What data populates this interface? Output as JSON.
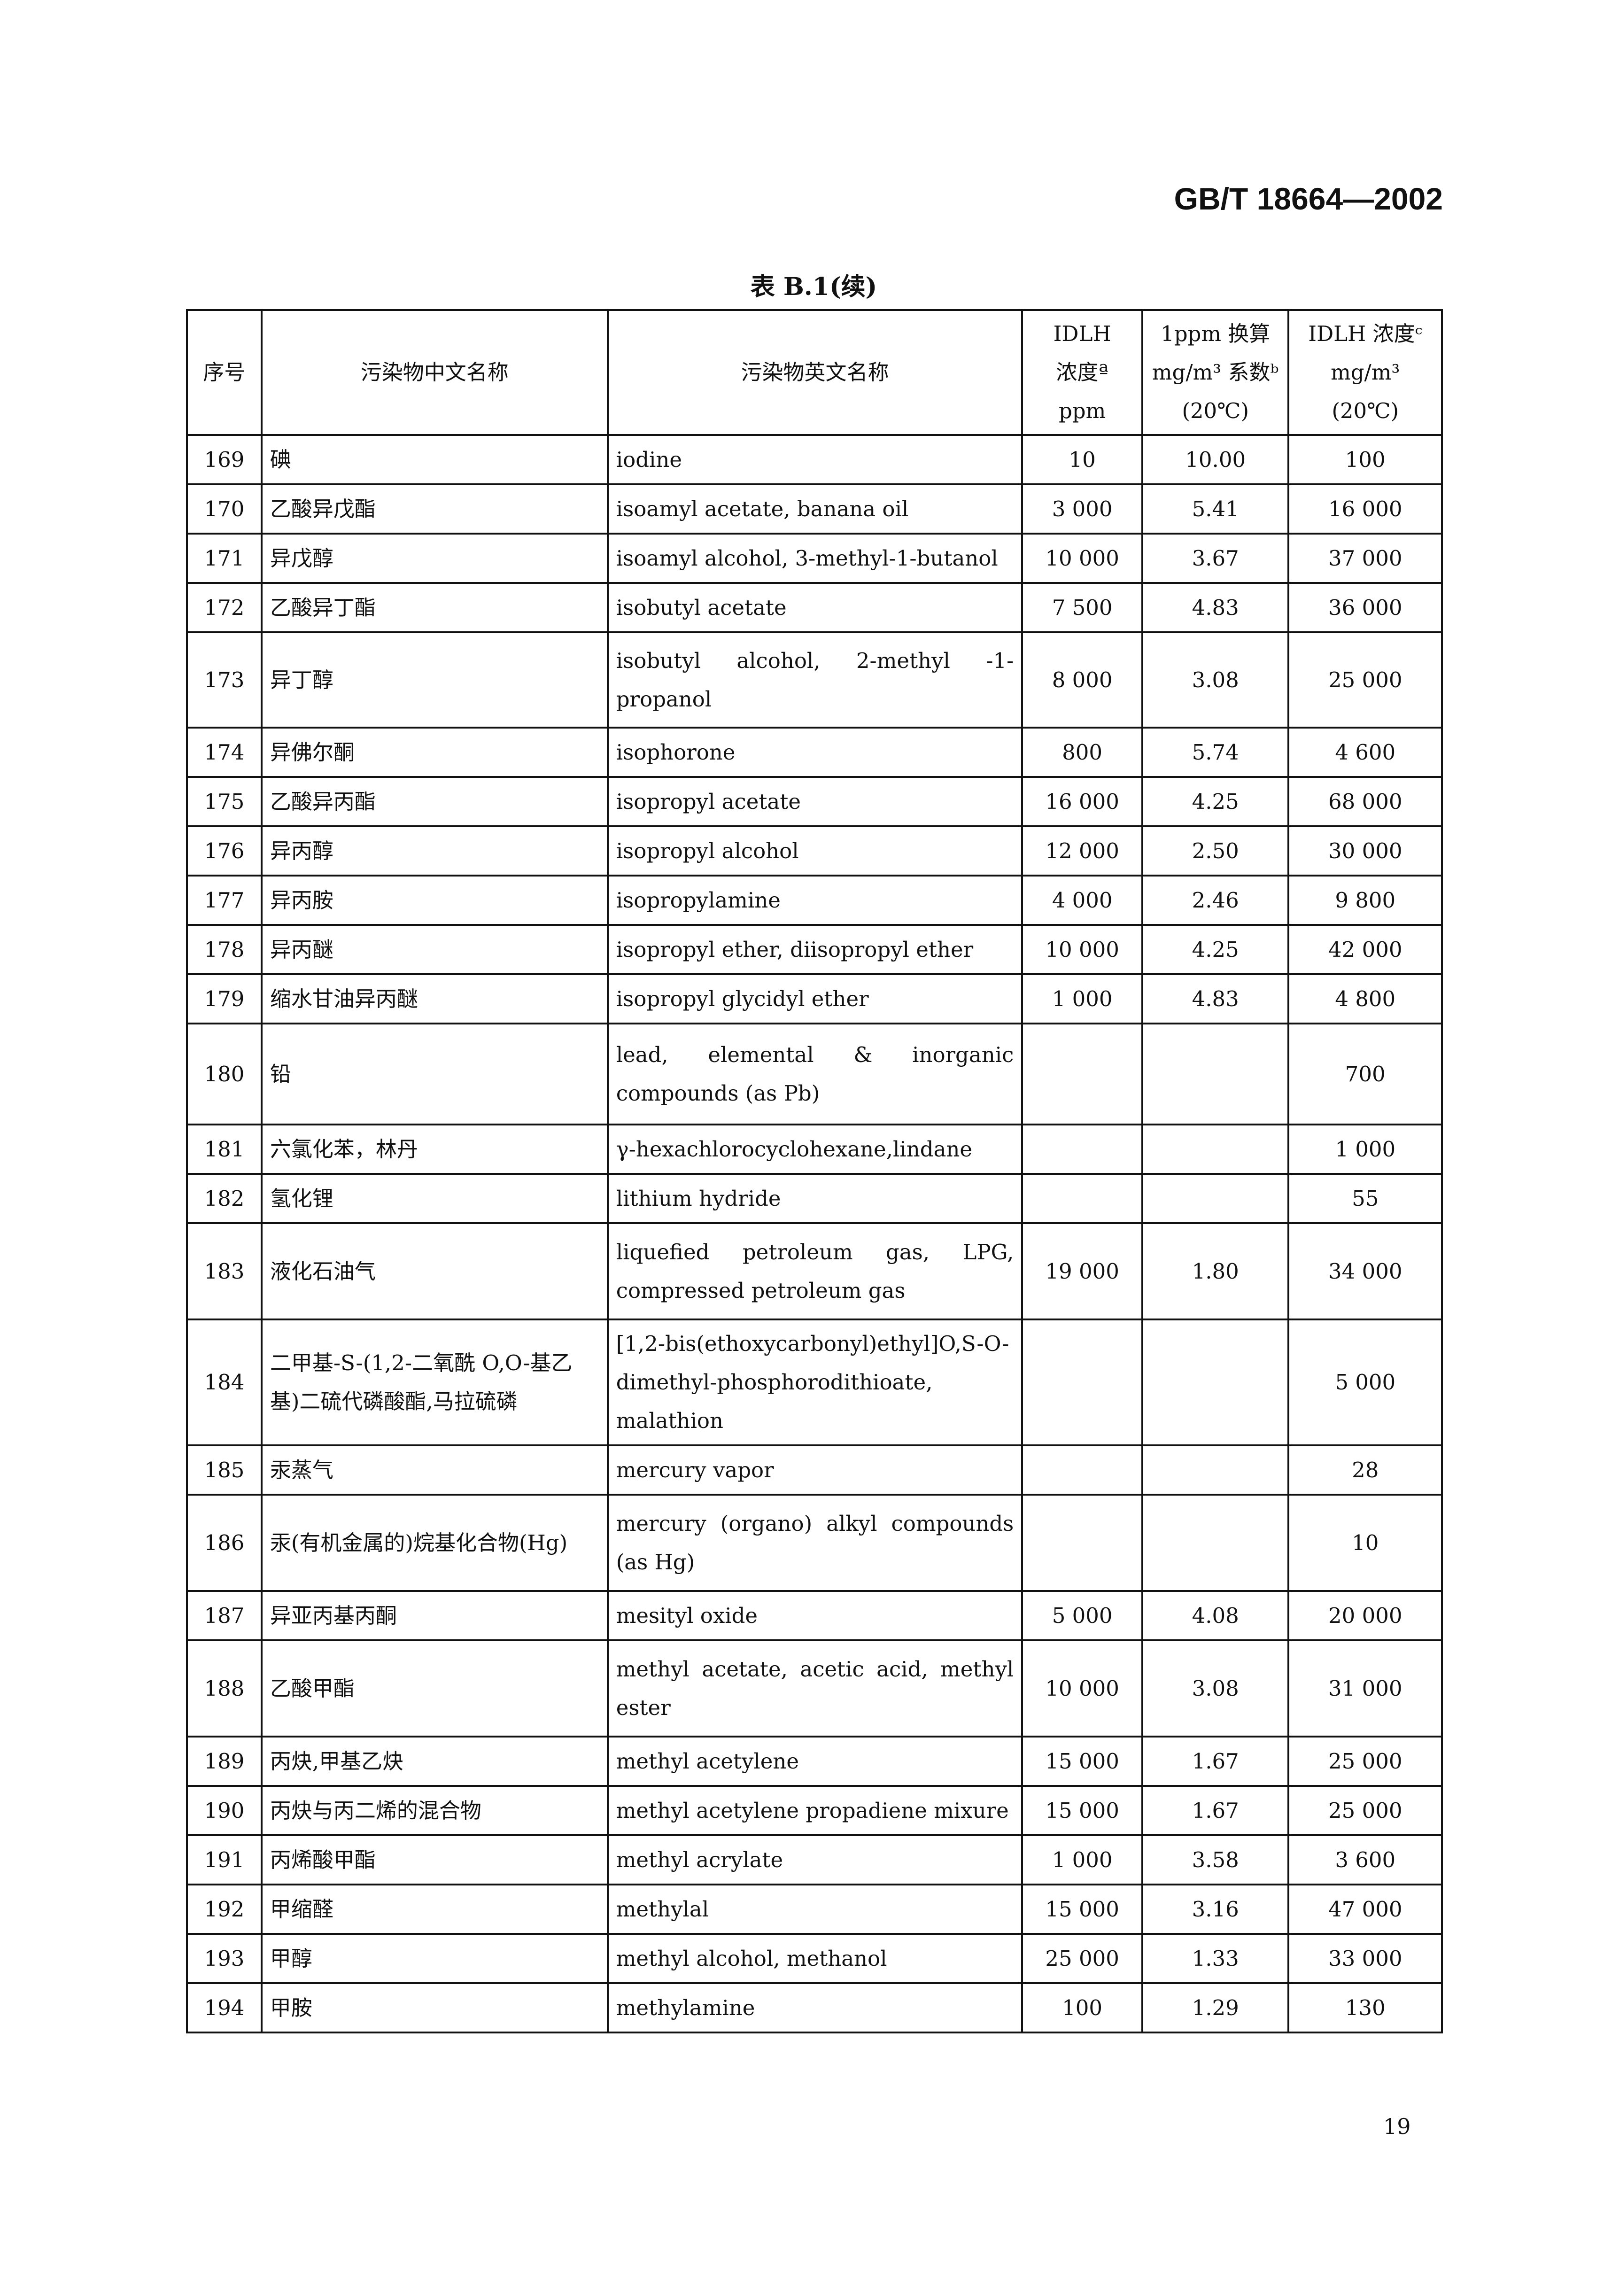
{
  "header": {
    "standard_number": "GB/T 18664—2002"
  },
  "table": {
    "caption": "表 B.1(续)",
    "columns": [
      {
        "label": "序号"
      },
      {
        "label": "污染物中文名称"
      },
      {
        "label": "污染物英文名称"
      },
      {
        "label": "IDLH 浓度ª ppm",
        "lines": [
          "IDLH",
          "浓度ª",
          "ppm"
        ]
      },
      {
        "label": "1ppm 换算 mg/m³ 系数ᵇ (20℃)",
        "lines": [
          "1ppm 换算",
          "mg/m³ 系数ᵇ",
          "(20℃)"
        ]
      },
      {
        "label": "IDLH 浓度ᶜ mg/m³ (20℃)",
        "lines": [
          "IDLH 浓度ᶜ",
          "mg/m³",
          "(20℃)"
        ]
      }
    ],
    "rows": [
      [
        "169",
        "碘",
        "iodine",
        "10",
        "10.00",
        "100"
      ],
      [
        "170",
        "乙酸异戊酯",
        "isoamyl acetate, banana oil",
        "3 000",
        "5.41",
        "16 000"
      ],
      [
        "171",
        "异戊醇",
        "isoamyl alcohol, 3-methyl-1-butanol",
        "10 000",
        "3.67",
        "37 000"
      ],
      [
        "172",
        "乙酸异丁酯",
        "isobutyl acetate",
        "7 500",
        "4.83",
        "36 000"
      ],
      [
        "173",
        "异丁醇",
        "isobutyl alcohol, 2-methyl -1-propanol",
        "8 000",
        "3.08",
        "25 000"
      ],
      [
        "174",
        "异佛尔酮",
        "isophorone",
        "800",
        "5.74",
        "4 600"
      ],
      [
        "175",
        "乙酸异丙酯",
        "isopropyl acetate",
        "16 000",
        "4.25",
        "68 000"
      ],
      [
        "176",
        "异丙醇",
        "isopropyl alcohol",
        "12 000",
        "2.50",
        "30 000"
      ],
      [
        "177",
        "异丙胺",
        "isopropylamine",
        "4 000",
        "2.46",
        "9 800"
      ],
      [
        "178",
        "异丙醚",
        "isopropyl ether, diisopropyl ether",
        "10 000",
        "4.25",
        "42 000"
      ],
      [
        "179",
        "缩水甘油异丙醚",
        "isopropyl glycidyl ether",
        "1 000",
        "4.83",
        "4 800"
      ],
      [
        "180",
        "铅",
        "lead, elemental & inorganic compounds (as Pb)",
        "",
        "",
        "700"
      ],
      [
        "181",
        "六氯化苯，林丹",
        "γ-hexachlorocyclohexane,lindane",
        "",
        "",
        "1 000"
      ],
      [
        "182",
        "氢化锂",
        "lithium hydride",
        "",
        "",
        "55"
      ],
      [
        "183",
        "液化石油气",
        "liquefied petroleum gas, LPG, compressed petroleum gas",
        "19 000",
        "1.80",
        "34 000"
      ],
      [
        "184",
        "二甲基-S-(1,2-二氧酰 O,O-基乙基)二硫代磷酸酯,马拉硫磷",
        "[1,2-bis(ethoxycarbonyl)ethyl]O,S-O-dimethyl-phosphorodithioate, malathion",
        "",
        "",
        "5 000"
      ],
      [
        "185",
        "汞蒸气",
        "mercury vapor",
        "",
        "",
        "28"
      ],
      [
        "186",
        "汞(有机金属的)烷基化合物(Hg)",
        "mercury (organo) alkyl compounds (as Hg)",
        "",
        "",
        "10"
      ],
      [
        "187",
        "异亚丙基丙酮",
        "mesityl oxide",
        "5 000",
        "4.08",
        "20 000"
      ],
      [
        "188",
        "乙酸甲酯",
        "methyl acetate, acetic acid, methyl ester",
        "10 000",
        "3.08",
        "31 000"
      ],
      [
        "189",
        "丙炔,甲基乙炔",
        "methyl acetylene",
        "15 000",
        "1.67",
        "25 000"
      ],
      [
        "190",
        "丙炔与丙二烯的混合物",
        "methyl acetylene propadiene mixure",
        "15 000",
        "1.67",
        "25 000"
      ],
      [
        "191",
        "丙烯酸甲酯",
        "methyl acrylate",
        "1 000",
        "3.58",
        "3 600"
      ],
      [
        "192",
        "甲缩醛",
        "methylal",
        "15 000",
        "3.16",
        "47 000"
      ],
      [
        "193",
        "甲醇",
        "methyl alcohol, methanol",
        "25 000",
        "1.33",
        "33 000"
      ],
      [
        "194",
        "甲胺",
        "methylamine",
        "100",
        "1.29",
        "130"
      ]
    ]
  },
  "footer": {
    "page_number": "19"
  }
}
